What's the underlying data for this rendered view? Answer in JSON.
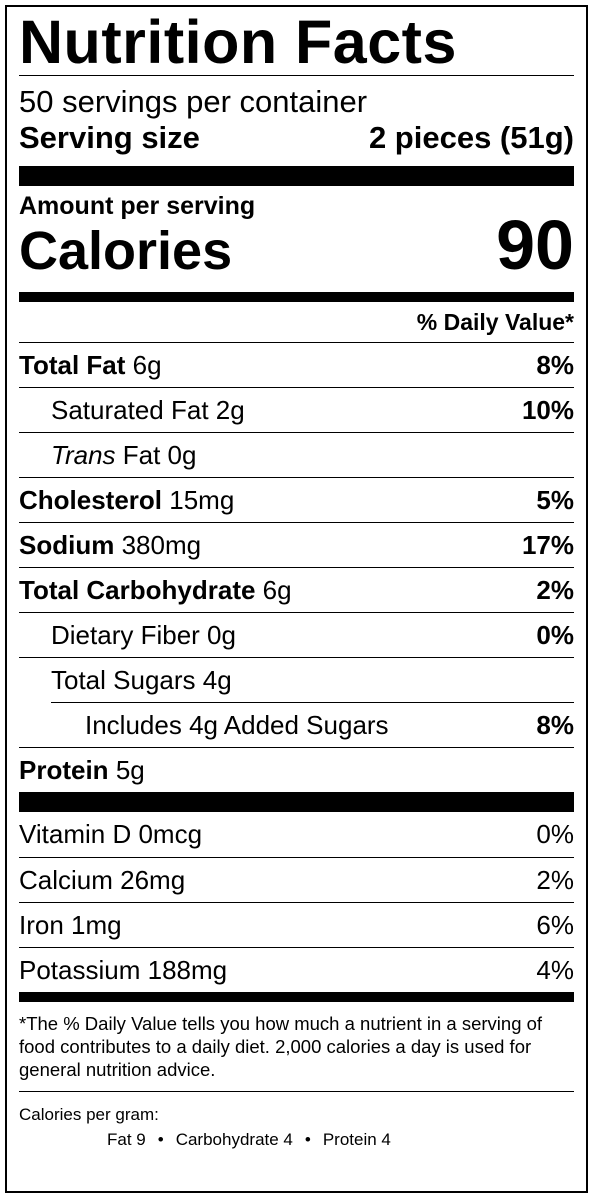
{
  "title": "Nutrition Facts",
  "servings_per_container": "50 servings per container",
  "serving_size": {
    "label": "Serving size",
    "value": "2 pieces (51g)"
  },
  "amount_per_serving": "Amount per serving",
  "calories": {
    "label": "Calories",
    "value": "90"
  },
  "dv_header": "% Daily Value*",
  "nutrients": {
    "total_fat": {
      "label": "Total Fat",
      "amount": "6g",
      "dv": "8%"
    },
    "saturated_fat": {
      "label": "Saturated Fat 2g",
      "dv": "10%"
    },
    "trans_fat": {
      "label_italic": "Trans",
      "label_rest": "Fat 0g"
    },
    "cholesterol": {
      "label": "Cholesterol",
      "amount": "15mg",
      "dv": "5%"
    },
    "sodium": {
      "label": "Sodium",
      "amount": "380mg",
      "dv": "17%"
    },
    "total_carb": {
      "label": "Total Carbohydrate",
      "amount": "6g",
      "dv": "2%"
    },
    "dietary_fiber": {
      "label": "Dietary Fiber 0g",
      "dv": "0%"
    },
    "total_sugars": {
      "label": "Total Sugars 4g"
    },
    "added_sugars": {
      "label": "Includes 4g Added Sugars",
      "dv": "8%"
    },
    "protein": {
      "label": "Protein",
      "amount": "5g"
    }
  },
  "vitamins": [
    {
      "label": "Vitamin D 0mcg",
      "dv": "0%"
    },
    {
      "label": "Calcium 26mg",
      "dv": "2%"
    },
    {
      "label": "Iron 1mg",
      "dv": "6%"
    },
    {
      "label": "Potassium 188mg",
      "dv": "4%"
    }
  ],
  "footnote": "*The % Daily Value tells you how much a nutrient in a serving of food contributes to a daily diet. 2,000 calories a day is used for general nutrition advice.",
  "calories_per_gram": {
    "label": "Calories per gram:",
    "fat": "Fat 9",
    "carbohydrate": "Carbohydrate 4",
    "protein": "Protein 4",
    "separator": "•"
  }
}
